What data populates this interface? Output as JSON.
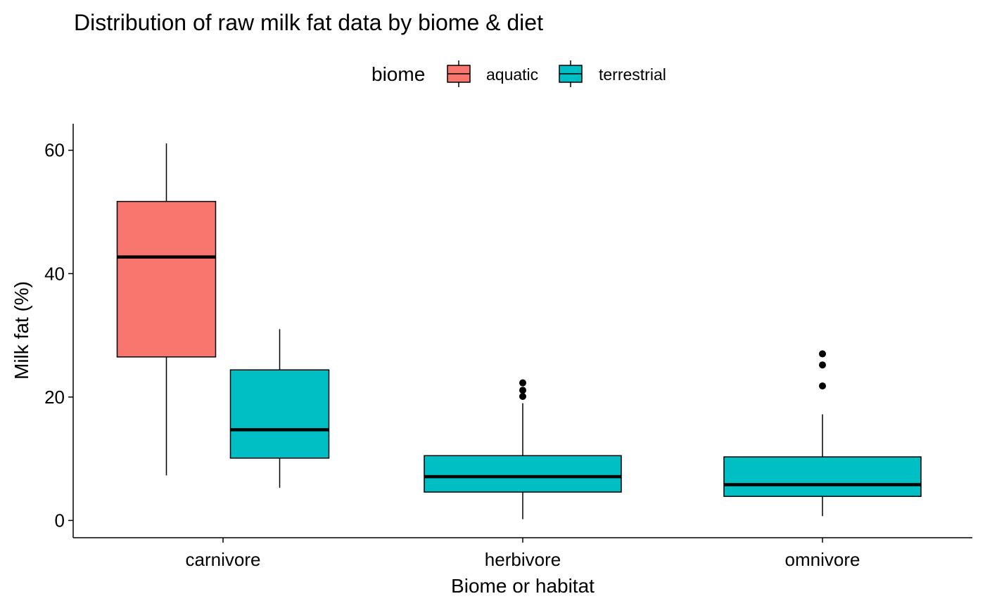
{
  "chart_data": {
    "type": "boxplot",
    "title": "Distribution of raw milk fat data by biome & diet",
    "xlabel": "Biome or habitat",
    "ylabel": "Milk fat (%)",
    "ylim": [
      -2.8,
      64.3
    ],
    "yticks": [
      0,
      20,
      40,
      60
    ],
    "categories": [
      "carnivore",
      "herbivore",
      "omnivore"
    ],
    "legend": {
      "title": "biome",
      "position": "top",
      "entries": [
        {
          "key": "aquatic",
          "label": "aquatic",
          "color": "#F8766D"
        },
        {
          "key": "terrestrial",
          "label": "terrestrial",
          "color": "#00BFC4"
        }
      ]
    },
    "grid": false,
    "boxes": [
      {
        "category": "carnivore",
        "group": "aquatic",
        "min": 7.3,
        "q1": 26.5,
        "median": 42.7,
        "q3": 51.7,
        "max": 61.1,
        "outliers": []
      },
      {
        "category": "carnivore",
        "group": "terrestrial",
        "min": 5.3,
        "q1": 10.1,
        "median": 14.7,
        "q3": 24.4,
        "max": 31.0,
        "outliers": []
      },
      {
        "category": "herbivore",
        "group": "terrestrial",
        "min": 0.2,
        "q1": 4.6,
        "median": 7.1,
        "q3": 10.5,
        "max": 19.0,
        "outliers": [
          20.1,
          21.1,
          22.3
        ]
      },
      {
        "category": "omnivore",
        "group": "terrestrial",
        "min": 0.7,
        "q1": 3.9,
        "median": 5.8,
        "q3": 10.3,
        "max": 17.2,
        "outliers": [
          21.8,
          25.2,
          27.0
        ]
      }
    ]
  }
}
